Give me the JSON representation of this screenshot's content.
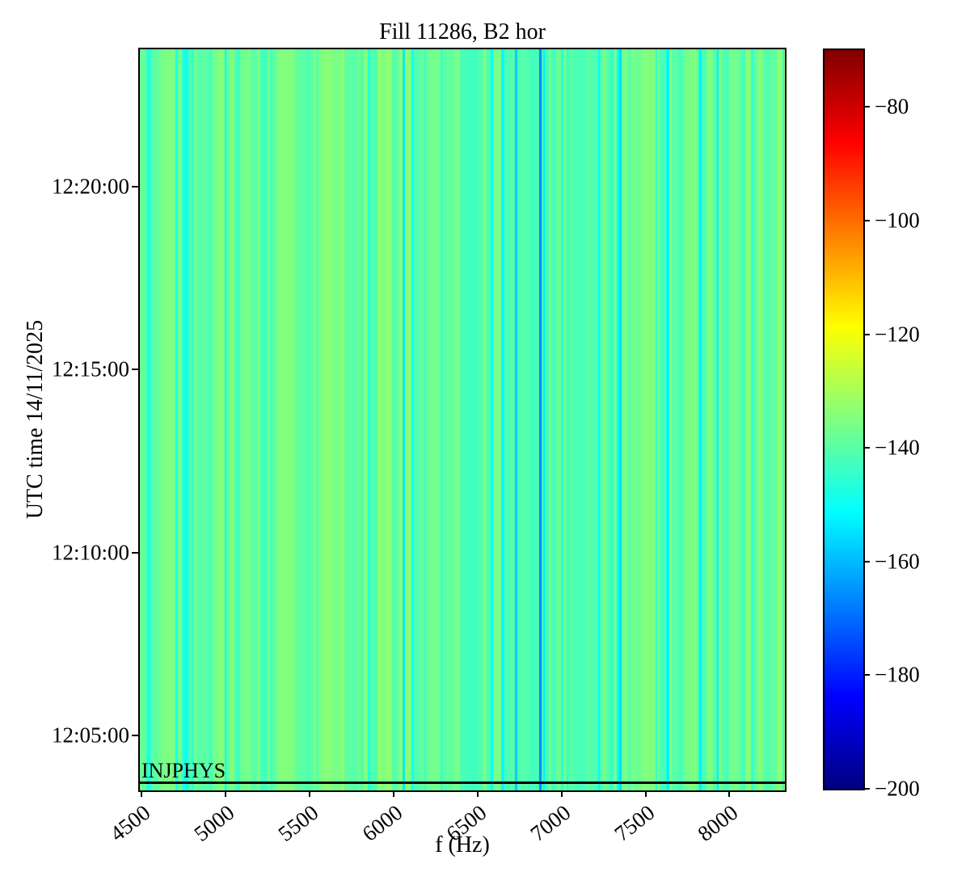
{
  "figure": {
    "background": "#ffffff"
  },
  "chart_data": {
    "type": "heatmap",
    "subtype": "spectrogram",
    "title": "Fill 11286, B2 hor",
    "xlabel": "f (Hz)",
    "ylabel": "UTC time 14/11/2025",
    "x_ticks": [
      "4500",
      "5000",
      "5500",
      "6000",
      "6500",
      "7000",
      "7500",
      "8000"
    ],
    "x_range_hz": [
      4490,
      8330
    ],
    "y_ticks": [
      "12:20:00",
      "12:15:00",
      "12:10:00",
      "12:05:00"
    ],
    "y_range_time": [
      "12:03:30",
      "12:23:45"
    ],
    "grid": false,
    "legend": false,
    "annotation": {
      "text": "INJPHYS",
      "time": "12:03:42",
      "line_color": "#000000"
    },
    "colorbar": {
      "colormap": "jet",
      "vmin": -200,
      "vmax": -70,
      "ticks": [
        "−80",
        "−100",
        "−120",
        "−140",
        "−160",
        "−180",
        "−200"
      ],
      "tick_values": [
        -80,
        -100,
        -120,
        -140,
        -160,
        -180,
        -200
      ],
      "gradient_stops": [
        {
          "pos": 0.0,
          "color": "#000080"
        },
        {
          "pos": 0.125,
          "color": "#0000ff"
        },
        {
          "pos": 0.375,
          "color": "#00ffff"
        },
        {
          "pos": 0.625,
          "color": "#ffff00"
        },
        {
          "pos": 0.875,
          "color": "#ff0000"
        },
        {
          "pos": 1.0,
          "color": "#800000"
        }
      ]
    },
    "spectrum": {
      "description": "Time-constant noise spectrum rendered as vertical stripes; background around -133 to -141 dB (green / yellow-green), frequent narrow turquoise-cyan dips around -144 to -152 dB, and a few deeper blue spectral lines.",
      "background_db_range": [
        -132.5,
        -141.5
      ],
      "narrow_dip_db_range": [
        -143.5,
        -152
      ],
      "prominent_dips": [
        {
          "f_hz": 6060,
          "db": -154
        },
        {
          "f_hz": 6727,
          "db": -158
        },
        {
          "f_hz": 6871,
          "db": -167
        },
        {
          "f_hz": 7348,
          "db": -156
        },
        {
          "f_hz": 7634,
          "db": -153
        }
      ],
      "seed": 11286
    }
  }
}
